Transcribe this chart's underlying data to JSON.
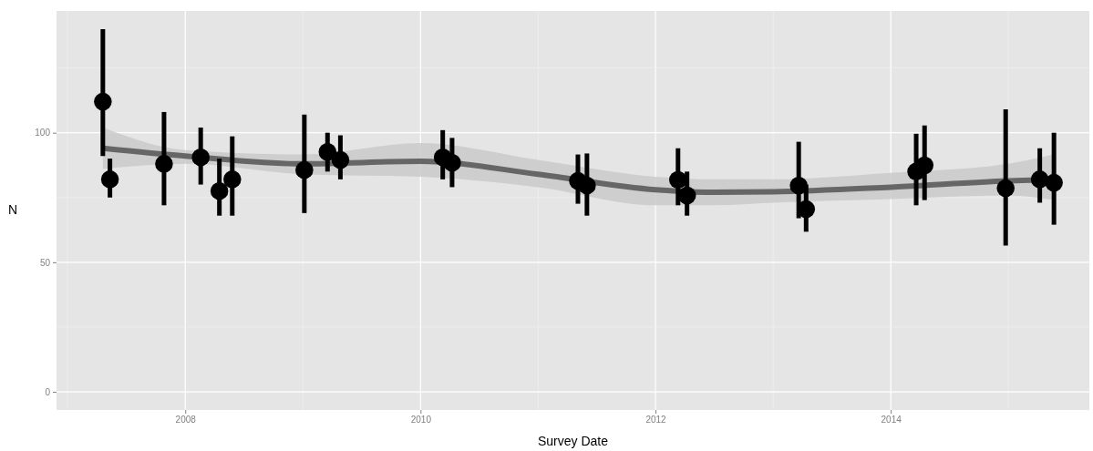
{
  "chart_data": {
    "type": "scatter",
    "xlabel": "Survey Date",
    "ylabel": "N",
    "xlim": [
      "2006-11-27",
      "2015-09-10"
    ],
    "ylim": [
      -7,
      147
    ],
    "xticks": [
      "2008",
      "2010",
      "2012",
      "2014"
    ],
    "yticks": [
      0,
      50,
      100
    ],
    "grid": true,
    "series": [
      {
        "type": "scatter",
        "marker": "circle",
        "color": "#000000",
        "x": [
          "2007-04-20",
          "2007-05-12",
          "2007-10-27",
          "2008-02-18",
          "2008-04-16",
          "2008-05-26",
          "2009-01-05",
          "2009-03-18",
          "2009-04-27",
          "2010-03-11",
          "2010-04-09",
          "2011-05-05",
          "2011-06-02",
          "2012-03-11",
          "2012-04-08",
          "2013-03-21",
          "2013-04-13",
          "2014-03-21",
          "2014-04-16",
          "2014-12-24",
          "2015-04-09",
          "2015-05-23"
        ],
        "values": [
          112,
          82,
          88,
          90.5,
          77.5,
          82,
          85.6,
          92.6,
          89.5,
          90.5,
          88.4,
          81.4,
          79.6,
          81.8,
          75.8,
          79.6,
          70.5,
          85,
          87.4,
          78.6,
          82,
          80.7
        ],
        "errors": [
          [
            91,
            140
          ],
          [
            75,
            90
          ],
          [
            72,
            108
          ],
          [
            80,
            102
          ],
          [
            68,
            90
          ],
          [
            68,
            98.6
          ],
          [
            69,
            107
          ],
          [
            85,
            100
          ],
          [
            82,
            99
          ],
          [
            82,
            101
          ],
          [
            79,
            98
          ],
          [
            72.6,
            91.6
          ],
          [
            68,
            92
          ],
          [
            72,
            94
          ],
          [
            68,
            85
          ],
          [
            67,
            96.5
          ],
          [
            61.8,
            80
          ],
          [
            72,
            99.6
          ],
          [
            74,
            102.8
          ],
          [
            56.5,
            109
          ],
          [
            73,
            94
          ],
          [
            64.5,
            100
          ]
        ]
      },
      {
        "type": "line",
        "color": "#666666",
        "x": [
          "2007-04-20",
          "2008-01-01",
          "2009-01-01",
          "2010-01-01",
          "2011-01-01",
          "2012-01-01",
          "2012-07-01",
          "2013-01-01",
          "2014-01-01",
          "2015-01-01",
          "2015-05-23"
        ],
        "values": [
          94,
          91,
          88,
          89,
          84,
          78,
          77,
          77.2,
          79,
          81.4,
          82
        ],
        "lower": [
          86,
          88,
          84,
          83,
          79,
          72,
          72,
          73,
          74.4,
          75.8,
          74
        ],
        "upper": [
          102,
          93.3,
          91.6,
          96,
          89.5,
          83,
          82,
          82,
          84.5,
          88,
          91.6
        ]
      }
    ]
  }
}
